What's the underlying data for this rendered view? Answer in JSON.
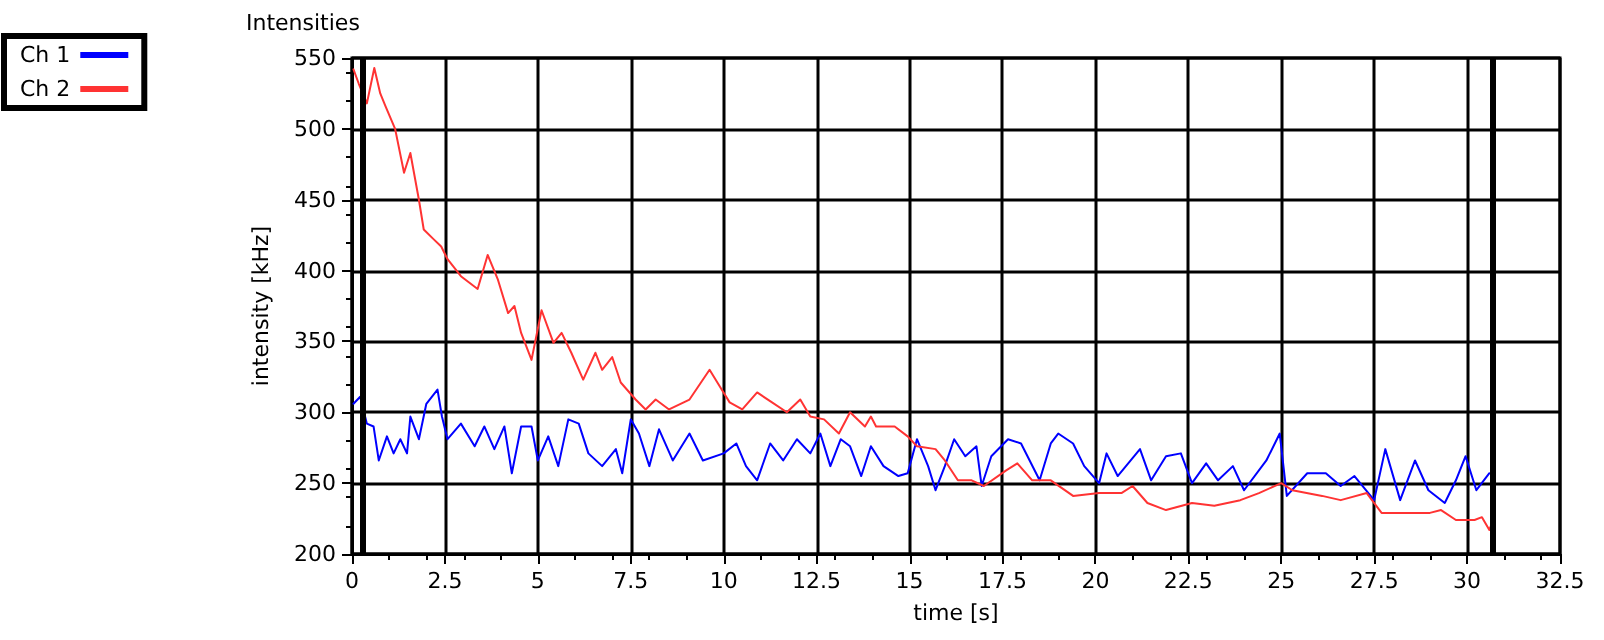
{
  "chart_data": {
    "type": "line",
    "title": "Intensities",
    "xlabel": "time [s]",
    "ylabel": "intensity [kHz]",
    "xlim": [
      0,
      32.5
    ],
    "xticks": [
      0,
      2.5,
      5,
      7.5,
      10,
      12.5,
      15,
      17.5,
      20,
      22.5,
      25,
      27.5,
      30,
      32.5
    ],
    "ylim": [
      200,
      550
    ],
    "yticks": [
      200,
      250,
      300,
      350,
      400,
      450,
      500,
      550
    ],
    "grid": true,
    "legend": "top left",
    "marker": "none",
    "line_style": "solid",
    "ref_lines": [
      {
        "axis": "x",
        "value": 0.3,
        "color": "#000000"
      },
      {
        "axis": "x",
        "value": 30.7,
        "color": "#000000"
      }
    ],
    "series": [
      {
        "name": "Ch 1",
        "color": "#0000ff",
        "x": [
          0.04,
          0.22,
          0.4,
          0.58,
          0.72,
          0.94,
          1.12,
          1.3,
          1.48,
          1.57,
          1.8,
          2.0,
          2.3,
          2.42,
          2.57,
          2.93,
          3.3,
          3.56,
          3.83,
          4.1,
          4.3,
          4.55,
          4.83,
          5.0,
          5.28,
          5.55,
          5.82,
          6.1,
          6.36,
          6.73,
          7.1,
          7.27,
          7.5,
          7.72,
          8.0,
          8.26,
          8.63,
          9.08,
          9.44,
          10.0,
          10.34,
          10.6,
          10.9,
          11.25,
          11.6,
          11.97,
          12.33,
          12.6,
          12.87,
          13.15,
          13.4,
          13.7,
          13.96,
          14.3,
          14.7,
          14.95,
          15.2,
          15.5,
          15.7,
          15.95,
          16.2,
          16.5,
          16.8,
          16.94,
          17.2,
          17.65,
          18.0,
          18.5,
          18.8,
          19.0,
          19.4,
          19.7,
          20.1,
          20.3,
          20.6,
          21.2,
          21.5,
          21.9,
          22.3,
          22.6,
          22.98,
          23.3,
          23.7,
          24.0,
          24.6,
          24.96,
          25.15,
          25.7,
          26.2,
          26.6,
          26.97,
          27.5,
          27.8,
          28.2,
          28.6,
          28.96,
          29.4,
          29.7,
          29.96,
          30.25,
          30.6
        ],
        "values": [
          306,
          311,
          292,
          290,
          266,
          283,
          271,
          281,
          271,
          297,
          281,
          306,
          316,
          297,
          281,
          292,
          276,
          290,
          274,
          290,
          257,
          290,
          290,
          266,
          283,
          262,
          295,
          292,
          271,
          262,
          274,
          257,
          295,
          285,
          262,
          288,
          266,
          285,
          266,
          271,
          278,
          262,
          252,
          278,
          266,
          281,
          271,
          285,
          262,
          281,
          276,
          255,
          276,
          262,
          255,
          257,
          281,
          262,
          245,
          262,
          281,
          269,
          276,
          248,
          269,
          281,
          278,
          252,
          278,
          285,
          278,
          262,
          250,
          271,
          255,
          274,
          252,
          269,
          271,
          250,
          264,
          252,
          262,
          245,
          266,
          285,
          241,
          257,
          257,
          248,
          255,
          238,
          274,
          238,
          266,
          245,
          236,
          252,
          269,
          245,
          257
        ]
      },
      {
        "name": "Ch 2",
        "color": "#ff3333",
        "x": [
          0.04,
          0.18,
          0.4,
          0.6,
          0.76,
          0.9,
          1.16,
          1.4,
          1.57,
          1.8,
          1.93,
          2.2,
          2.4,
          2.57,
          2.93,
          3.38,
          3.65,
          3.92,
          4.2,
          4.37,
          4.55,
          4.83,
          5.1,
          5.42,
          5.64,
          5.9,
          6.22,
          6.55,
          6.73,
          7.0,
          7.23,
          7.63,
          7.9,
          8.17,
          8.53,
          9.08,
          9.62,
          9.9,
          10.16,
          10.5,
          10.9,
          11.3,
          11.7,
          12.06,
          12.33,
          12.7,
          13.1,
          13.4,
          13.8,
          13.96,
          14.1,
          14.6,
          14.95,
          15.2,
          15.7,
          15.95,
          16.3,
          16.67,
          17.0,
          17.6,
          17.9,
          18.3,
          18.8,
          19.4,
          20.1,
          20.7,
          21.0,
          21.4,
          21.9,
          22.6,
          23.2,
          23.9,
          24.4,
          25.0,
          25.3,
          26.1,
          26.6,
          27.3,
          27.7,
          28.4,
          29.0,
          29.3,
          29.7,
          30.2,
          30.4,
          30.6,
          30.7
        ],
        "values": [
          542,
          532,
          518,
          543,
          525,
          516,
          500,
          469,
          483,
          450,
          429,
          422,
          417,
          408,
          396,
          387,
          411,
          394,
          370,
          375,
          356,
          337,
          372,
          349,
          356,
          342,
          323,
          342,
          330,
          339,
          321,
          309,
          302,
          309,
          302,
          309,
          330,
          318,
          307,
          302,
          314,
          307,
          300,
          309,
          297,
          295,
          285,
          300,
          290,
          297,
          290,
          290,
          283,
          276,
          274,
          266,
          252,
          252,
          248,
          259,
          264,
          252,
          252,
          241,
          243,
          243,
          248,
          236,
          231,
          236,
          234,
          238,
          243,
          250,
          245,
          241,
          238,
          243,
          229,
          229,
          229,
          231,
          224,
          224,
          226,
          217,
          224
        ]
      }
    ]
  }
}
